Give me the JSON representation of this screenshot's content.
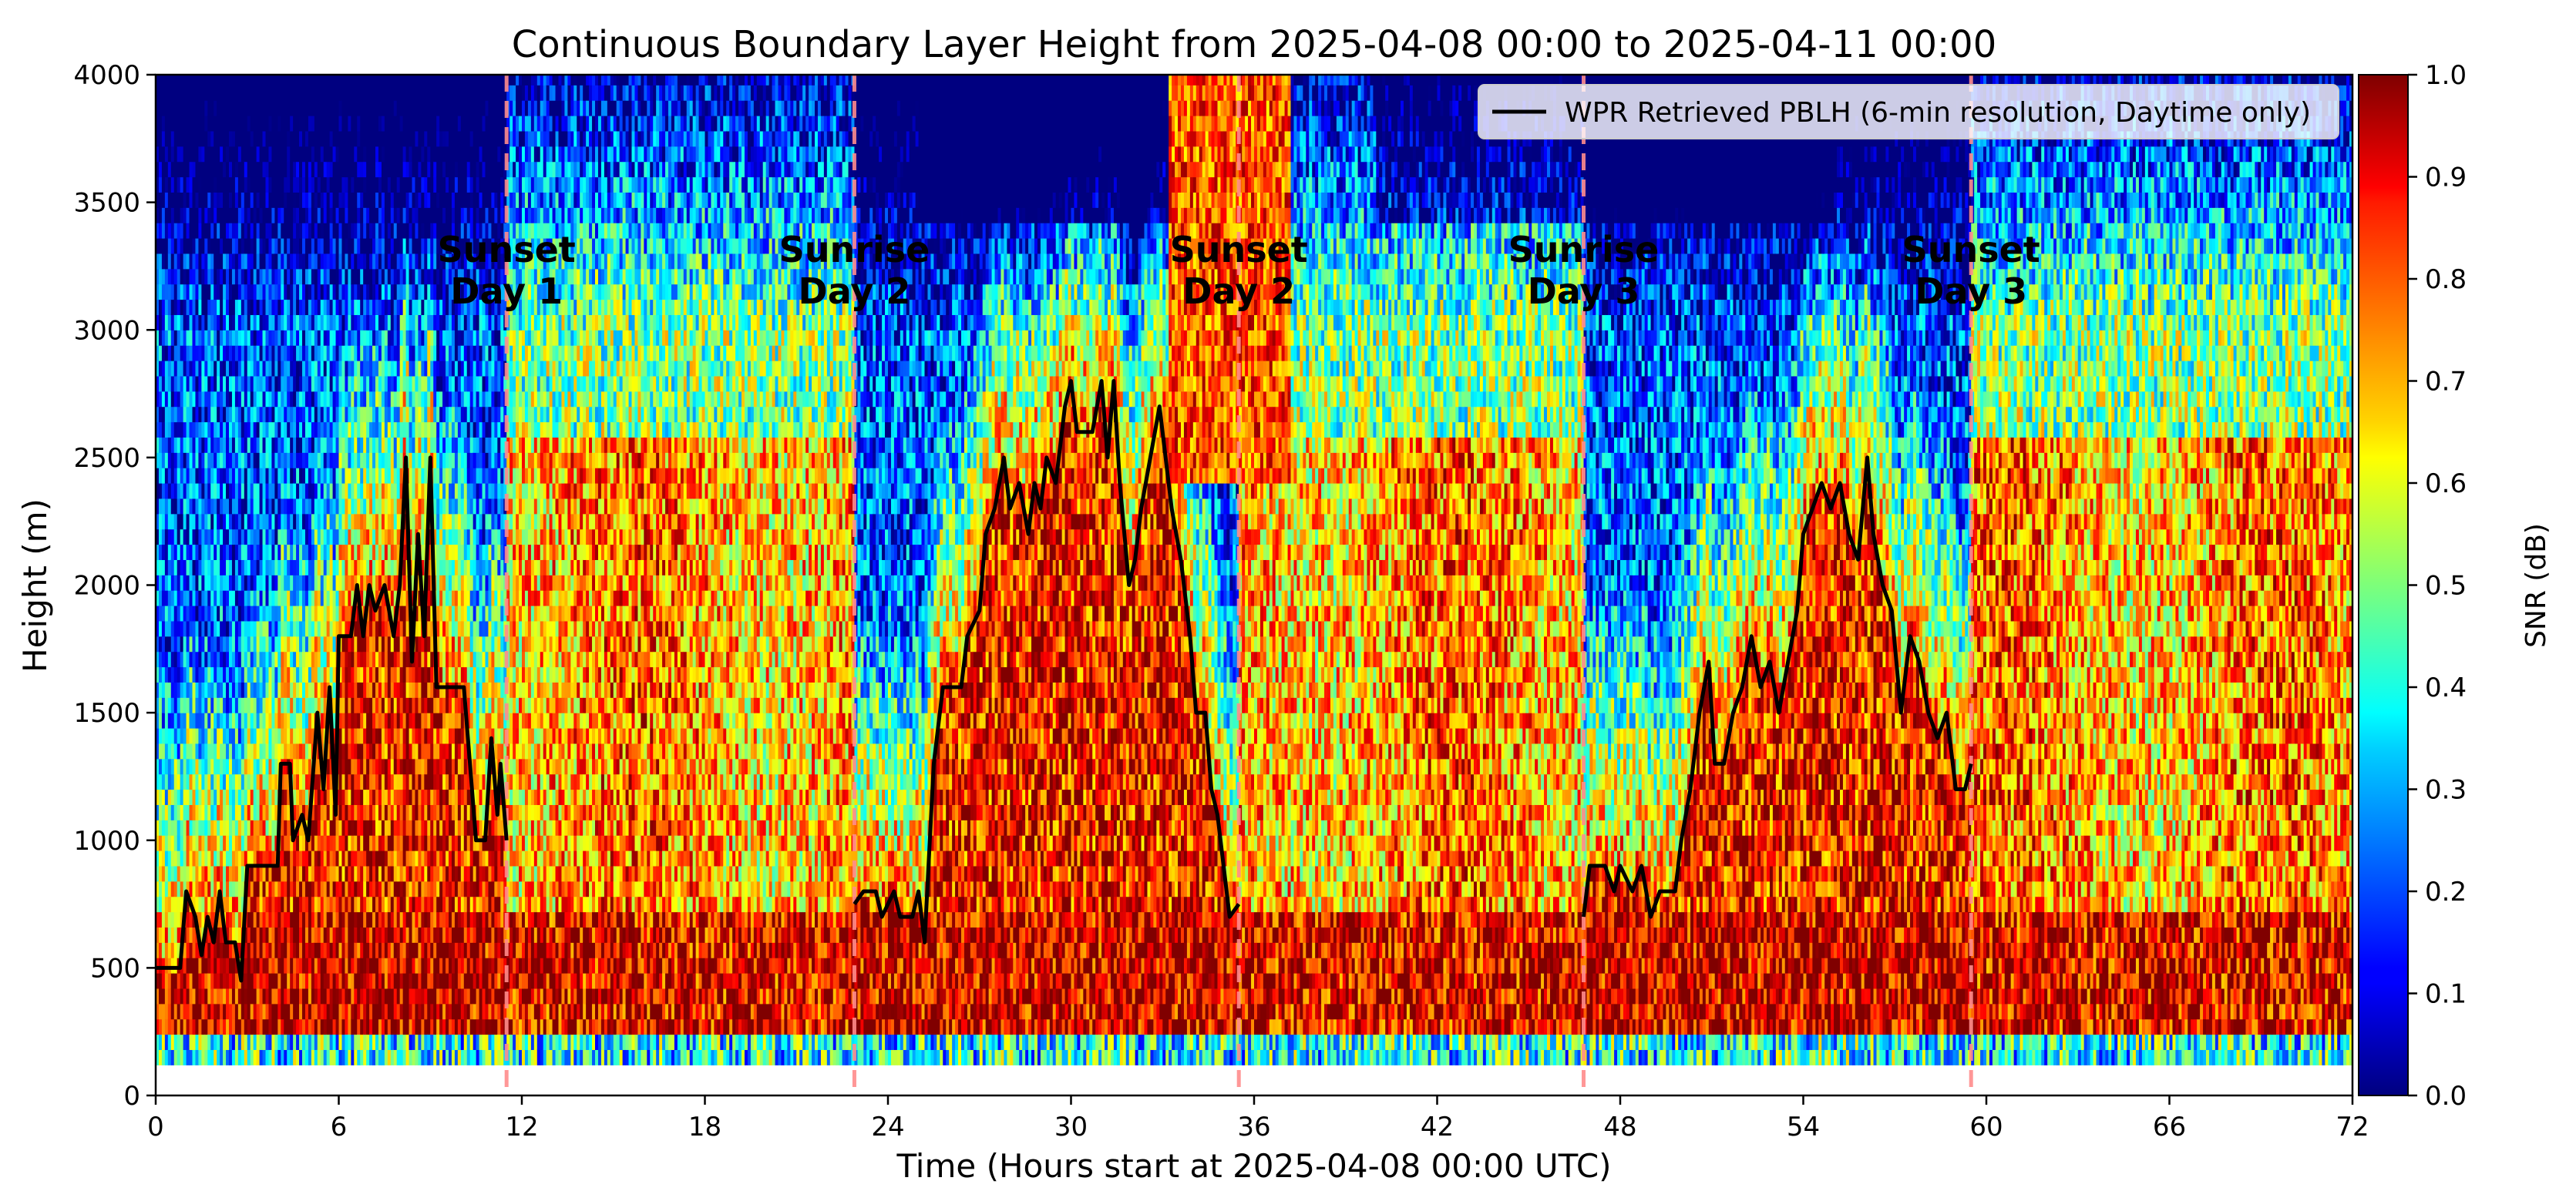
{
  "chart_data": {
    "type": "heatmap",
    "title": "Continuous Boundary Layer Height from 2025-04-08 00:00 to 2025-04-11 00:00",
    "xlabel": "Time (Hours start at 2025-04-08 00:00 UTC)",
    "ylabel": "Height (m)",
    "xlim": [
      0,
      72
    ],
    "ylim": [
      0,
      4000
    ],
    "x_ticks": [
      "0",
      "6",
      "12",
      "18",
      "24",
      "30",
      "36",
      "42",
      "48",
      "54",
      "60",
      "66",
      "72"
    ],
    "y_ticks": [
      "0",
      "500",
      "1000",
      "1500",
      "2000",
      "2500",
      "3000",
      "3500",
      "4000"
    ],
    "colorbar": {
      "label": "SNR (dB)",
      "range": [
        0.0,
        1.0
      ],
      "ticks": [
        "0.0",
        "0.1",
        "0.2",
        "0.3",
        "0.4",
        "0.5",
        "0.6",
        "0.7",
        "0.8",
        "0.9",
        "1.0"
      ],
      "colormap": "jet"
    },
    "legend": {
      "placement": "top-right",
      "entries": [
        "WPR Retrieved PBLH (6-min resolution, Daytime only)"
      ]
    },
    "pblh_line_color": "#000000",
    "event_line_color": "#ff8c8c",
    "events": [
      {
        "line1": "Sunset",
        "line2": "Day 1",
        "x": 11.5
      },
      {
        "line1": "Sunrise",
        "line2": "Day 2",
        "x": 22.9
      },
      {
        "line1": "Sunset",
        "line2": "Day 2",
        "x": 35.5
      },
      {
        "line1": "Sunrise",
        "line2": "Day 3",
        "x": 46.8
      },
      {
        "line1": "Sunset",
        "line2": "Day 3",
        "x": 59.5
      }
    ],
    "series": [
      {
        "name": "WPR Retrieved PBLH (6-min resolution, Daytime only)",
        "segments": [
          [
            [
              0,
              500
            ],
            [
              0.8,
              500
            ],
            [
              1.0,
              800
            ],
            [
              1.3,
              700
            ],
            [
              1.5,
              550
            ],
            [
              1.7,
              700
            ],
            [
              1.9,
              600
            ],
            [
              2.1,
              800
            ],
            [
              2.3,
              600
            ],
            [
              2.6,
              600
            ],
            [
              2.8,
              450
            ],
            [
              3.0,
              900
            ],
            [
              4.0,
              900
            ],
            [
              4.1,
              1300
            ],
            [
              4.4,
              1300
            ],
            [
              4.5,
              1000
            ],
            [
              4.8,
              1100
            ],
            [
              5.0,
              1000
            ],
            [
              5.3,
              1500
            ],
            [
              5.5,
              1200
            ],
            [
              5.7,
              1600
            ],
            [
              5.9,
              1100
            ],
            [
              6.0,
              1800
            ],
            [
              6.4,
              1800
            ],
            [
              6.6,
              2000
            ],
            [
              6.8,
              1800
            ],
            [
              7.0,
              2000
            ],
            [
              7.2,
              1900
            ],
            [
              7.5,
              2000
            ],
            [
              7.8,
              1800
            ],
            [
              8.0,
              2000
            ],
            [
              8.2,
              2500
            ],
            [
              8.4,
              1700
            ],
            [
              8.6,
              2200
            ],
            [
              8.8,
              1800
            ],
            [
              9.0,
              2500
            ],
            [
              9.2,
              1600
            ],
            [
              10.1,
              1600
            ],
            [
              10.3,
              1300
            ],
            [
              10.5,
              1000
            ],
            [
              10.8,
              1000
            ],
            [
              11.0,
              1400
            ],
            [
              11.2,
              1100
            ],
            [
              11.3,
              1300
            ],
            [
              11.5,
              1000
            ]
          ],
          [
            [
              22.9,
              750
            ],
            [
              23.2,
              800
            ],
            [
              23.6,
              800
            ],
            [
              23.8,
              700
            ],
            [
              24.2,
              800
            ],
            [
              24.4,
              700
            ],
            [
              24.8,
              700
            ],
            [
              25.0,
              800
            ],
            [
              25.2,
              600
            ],
            [
              25.5,
              1300
            ],
            [
              25.8,
              1600
            ],
            [
              26.4,
              1600
            ],
            [
              26.6,
              1800
            ],
            [
              27.0,
              1900
            ],
            [
              27.2,
              2200
            ],
            [
              27.5,
              2300
            ],
            [
              27.8,
              2500
            ],
            [
              28.0,
              2300
            ],
            [
              28.3,
              2400
            ],
            [
              28.6,
              2200
            ],
            [
              28.8,
              2400
            ],
            [
              29.0,
              2300
            ],
            [
              29.2,
              2500
            ],
            [
              29.5,
              2400
            ],
            [
              29.8,
              2700
            ],
            [
              30.0,
              2800
            ],
            [
              30.2,
              2600
            ],
            [
              30.7,
              2600
            ],
            [
              31.0,
              2800
            ],
            [
              31.2,
              2500
            ],
            [
              31.4,
              2800
            ],
            [
              31.6,
              2400
            ],
            [
              31.9,
              2000
            ],
            [
              32.1,
              2100
            ],
            [
              32.3,
              2300
            ],
            [
              32.6,
              2500
            ],
            [
              32.9,
              2700
            ],
            [
              33.1,
              2500
            ],
            [
              33.3,
              2300
            ],
            [
              33.6,
              2100
            ],
            [
              33.9,
              1800
            ],
            [
              34.1,
              1500
            ],
            [
              34.4,
              1500
            ],
            [
              34.6,
              1200
            ],
            [
              34.8,
              1100
            ],
            [
              35.0,
              900
            ],
            [
              35.2,
              700
            ],
            [
              35.5,
              750
            ]
          ],
          [
            [
              46.8,
              700
            ],
            [
              47.0,
              900
            ],
            [
              47.5,
              900
            ],
            [
              47.8,
              800
            ],
            [
              48.0,
              900
            ],
            [
              48.4,
              800
            ],
            [
              48.7,
              900
            ],
            [
              49.0,
              700
            ],
            [
              49.3,
              800
            ],
            [
              49.8,
              800
            ],
            [
              50.0,
              1000
            ],
            [
              50.3,
              1200
            ],
            [
              50.6,
              1500
            ],
            [
              50.9,
              1700
            ],
            [
              51.1,
              1300
            ],
            [
              51.4,
              1300
            ],
            [
              51.7,
              1500
            ],
            [
              52.0,
              1600
            ],
            [
              52.3,
              1800
            ],
            [
              52.6,
              1600
            ],
            [
              52.9,
              1700
            ],
            [
              53.2,
              1500
            ],
            [
              53.5,
              1700
            ],
            [
              53.8,
              1900
            ],
            [
              54.0,
              2200
            ],
            [
              54.3,
              2300
            ],
            [
              54.6,
              2400
            ],
            [
              54.9,
              2300
            ],
            [
              55.2,
              2400
            ],
            [
              55.5,
              2200
            ],
            [
              55.8,
              2100
            ],
            [
              56.1,
              2500
            ],
            [
              56.3,
              2200
            ],
            [
              56.6,
              2000
            ],
            [
              56.9,
              1900
            ],
            [
              57.2,
              1500
            ],
            [
              57.5,
              1800
            ],
            [
              57.8,
              1700
            ],
            [
              58.1,
              1500
            ],
            [
              58.4,
              1400
            ],
            [
              58.7,
              1500
            ],
            [
              59.0,
              1200
            ],
            [
              59.3,
              1200
            ],
            [
              59.5,
              1300
            ]
          ]
        ]
      }
    ]
  }
}
